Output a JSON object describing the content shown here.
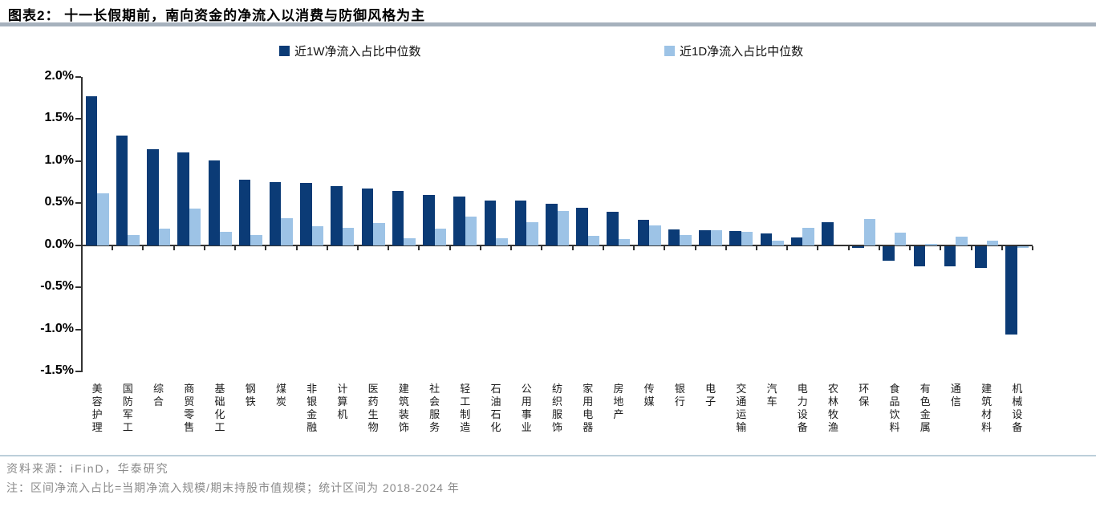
{
  "title": "图表2：  十一长假期前，南向资金的净流入以消费与防御风格为主",
  "legend": {
    "w_label": "近1W净流入占比中位数",
    "d_label": "近1D净流入占比中位数"
  },
  "colors": {
    "series_1w": "#0b3b76",
    "series_1d": "#9dc3e6",
    "header_rule": "#a6b1bd",
    "footer_rule": "#bccfda",
    "axis": "#333333"
  },
  "chart_data": {
    "type": "bar",
    "title": "十一长假期前，南向资金的净流入以消费与防御风格为主",
    "categories": [
      "美容护理",
      "国防军工",
      "综合",
      "商贸零售",
      "基础化工",
      "钢铁",
      "煤炭",
      "非银金融",
      "计算机",
      "医药生物",
      "建筑装饰",
      "社会服务",
      "轻工制造",
      "石油石化",
      "公用事业",
      "纺织服饰",
      "家用电器",
      "房地产",
      "传媒",
      "银行",
      "电子",
      "交通运输",
      "汽车",
      "电力设备",
      "农林牧渔",
      "环保",
      "食品饮料",
      "有色金属",
      "通信",
      "建筑材料",
      "机械设备"
    ],
    "series": [
      {
        "name": "近1W净流入占比中位数",
        "color": "#0b3b76",
        "values": [
          1.77,
          1.3,
          1.14,
          1.1,
          1.01,
          0.78,
          0.75,
          0.74,
          0.7,
          0.67,
          0.65,
          0.6,
          0.58,
          0.53,
          0.53,
          0.49,
          0.45,
          0.4,
          0.3,
          0.19,
          0.18,
          0.17,
          0.14,
          0.09,
          0.27,
          -0.02,
          -0.17,
          -0.24,
          -0.24,
          -0.26,
          -1.05
        ]
      },
      {
        "name": "近1D净流入占比中位数",
        "color": "#9dc3e6",
        "values": [
          0.62,
          0.12,
          0.2,
          0.44,
          0.16,
          0.12,
          0.32,
          0.23,
          0.21,
          0.26,
          0.08,
          0.2,
          0.34,
          0.08,
          0.27,
          0.41,
          0.11,
          0.07,
          0.24,
          0.12,
          0.18,
          0.16,
          0.05,
          0.21,
          0.0,
          0.31,
          0.15,
          0.02,
          0.1,
          0.05,
          -0.02
        ]
      }
    ],
    "xlabel": "",
    "ylabel": "",
    "ylim": [
      -1.5,
      2.0
    ],
    "yticks": [
      {
        "value": 2.0,
        "label": "2.0%"
      },
      {
        "value": 1.5,
        "label": "1.5%"
      },
      {
        "value": 1.0,
        "label": "1.0%"
      },
      {
        "value": 0.5,
        "label": "0.5%"
      },
      {
        "value": 0.0,
        "label": "0.0%"
      },
      {
        "value": -0.5,
        "label": "-0.5%"
      },
      {
        "value": -1.0,
        "label": "-1.0%"
      },
      {
        "value": -1.5,
        "label": "-1.5%"
      }
    ],
    "grid": false,
    "legend_position": "top"
  },
  "footer": {
    "source": "资料来源：iFinD，华泰研究",
    "note": "注：区间净流入占比=当期净流入规模/期末持股市值规模；统计区间为 2018-2024 年"
  }
}
